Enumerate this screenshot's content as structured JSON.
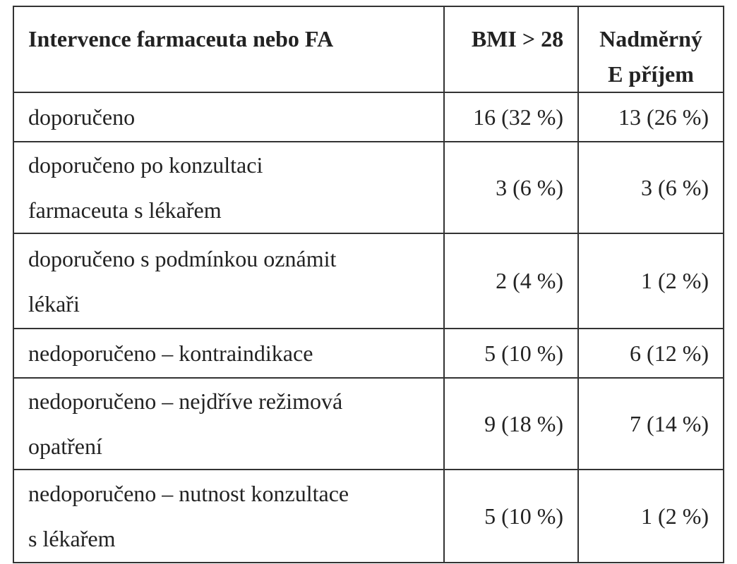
{
  "table": {
    "header": [
      [
        "Intervence farmaceuta nebo FA"
      ],
      [
        "BMI > 28"
      ],
      [
        "Nadměrný",
        "E příjem"
      ]
    ],
    "rows": [
      [
        [
          "doporučeno"
        ],
        "16 (32 %)",
        "13 (26 %)"
      ],
      [
        [
          "doporučeno po konzultaci",
          "farmaceuta s lékařem"
        ],
        "3 (6 %)",
        "3 (6 %)"
      ],
      [
        [
          "doporučeno s podmínkou oznámit",
          "lékaři"
        ],
        "2 (4 %)",
        "1 (2 %)"
      ],
      [
        [
          "nedoporučeno – kontraindikace"
        ],
        "5 (10 %)",
        "6 (12 %)"
      ],
      [
        [
          "nedoporučeno – nejdříve režimová",
          "opatření"
        ],
        "9 (18 %)",
        "7 (14 %)"
      ],
      [
        [
          "nedoporučeno – nutnost konzultace",
          "s lékařem"
        ],
        "5 (10 %)",
        "1 (2 %)"
      ]
    ]
  }
}
